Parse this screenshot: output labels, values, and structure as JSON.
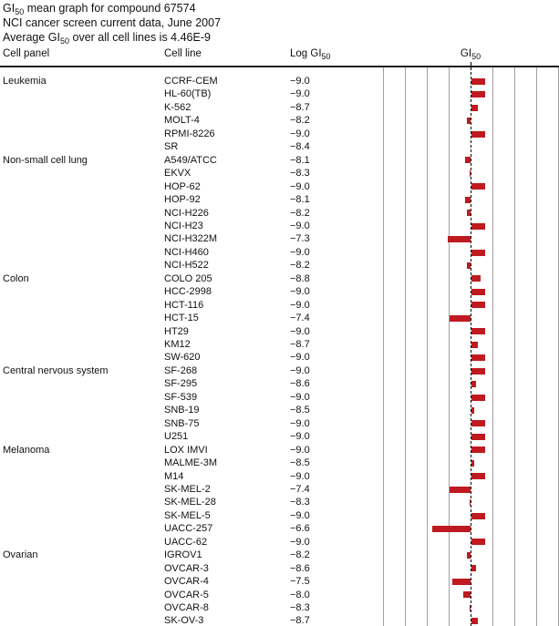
{
  "figure": {
    "title_line1": {
      "prefix": "GI",
      "sub": "50",
      "rest": " mean graph for compound 67574"
    },
    "title_line2": "NCI cancer screen current data, June 2007",
    "title_line3": {
      "prefix": "Average GI",
      "sub": "50",
      "rest": " over all cell lines is 4.46E-9"
    }
  },
  "columns": {
    "cell_panel": "Cell panel",
    "cell_line": "Cell line",
    "log_gi50": {
      "prefix": "Log GI",
      "sub": "50"
    },
    "gi50": {
      "prefix": "GI",
      "sub": "50"
    }
  },
  "chart_data": {
    "type": "bar",
    "orientation": "horizontal-deviation",
    "title": "GI50 mean graph for compound 67574",
    "subtitle": "NCI cancer screen current data, June 2007",
    "average_gi50": "4.46E-9",
    "mean_log_gi50": -8.35,
    "value_label": "Log GI50",
    "bars_extend_right_when": "log GI50 below mean (more sensitive)",
    "axis": {
      "min_deviation": -4,
      "max_deviation": 4,
      "tick_step": 1,
      "gridlines": true,
      "mean_line_style": "dashed"
    },
    "bar_color": "#bf1a20",
    "panels": [
      {
        "name": "Leukemia",
        "lines": [
          {
            "cell_line": "CCRF-CEM",
            "log_gi50": -9.0
          },
          {
            "cell_line": "HL-60(TB)",
            "log_gi50": -9.0
          },
          {
            "cell_line": "K-562",
            "log_gi50": -8.7
          },
          {
            "cell_line": "MOLT-4",
            "log_gi50": -8.2
          },
          {
            "cell_line": "RPMI-8226",
            "log_gi50": -9.0
          },
          {
            "cell_line": "SR",
            "log_gi50": -8.4
          }
        ]
      },
      {
        "name": "Non-small cell lung",
        "lines": [
          {
            "cell_line": "A549/ATCC",
            "log_gi50": -8.1
          },
          {
            "cell_line": "EKVX",
            "log_gi50": -8.3
          },
          {
            "cell_line": "HOP-62",
            "log_gi50": -9.0
          },
          {
            "cell_line": "HOP-92",
            "log_gi50": -8.1
          },
          {
            "cell_line": "NCI-H226",
            "log_gi50": -8.2
          },
          {
            "cell_line": "NCI-H23",
            "log_gi50": -9.0
          },
          {
            "cell_line": "NCI-H322M",
            "log_gi50": -7.3
          },
          {
            "cell_line": "NCI-H460",
            "log_gi50": -9.0
          },
          {
            "cell_line": "NCI-H522",
            "log_gi50": -8.2
          }
        ]
      },
      {
        "name": "Colon",
        "lines": [
          {
            "cell_line": "COLO 205",
            "log_gi50": -8.8
          },
          {
            "cell_line": "HCC-2998",
            "log_gi50": -9.0
          },
          {
            "cell_line": "HCT-116",
            "log_gi50": -9.0
          },
          {
            "cell_line": "HCT-15",
            "log_gi50": -7.4
          },
          {
            "cell_line": "HT29",
            "log_gi50": -9.0
          },
          {
            "cell_line": "KM12",
            "log_gi50": -8.7
          },
          {
            "cell_line": "SW-620",
            "log_gi50": -9.0
          }
        ]
      },
      {
        "name": "Central nervous system",
        "lines": [
          {
            "cell_line": "SF-268",
            "log_gi50": -9.0
          },
          {
            "cell_line": "SF-295",
            "log_gi50": -8.6
          },
          {
            "cell_line": "SF-539",
            "log_gi50": -9.0
          },
          {
            "cell_line": "SNB-19",
            "log_gi50": -8.5
          },
          {
            "cell_line": "SNB-75",
            "log_gi50": -9.0
          },
          {
            "cell_line": "U251",
            "log_gi50": -9.0
          }
        ]
      },
      {
        "name": "Melanoma",
        "lines": [
          {
            "cell_line": "LOX IMVI",
            "log_gi50": -9.0
          },
          {
            "cell_line": "MALME-3M",
            "log_gi50": -8.5
          },
          {
            "cell_line": "M14",
            "log_gi50": -9.0
          },
          {
            "cell_line": "SK-MEL-2",
            "log_gi50": -7.4
          },
          {
            "cell_line": "SK-MEL-28",
            "log_gi50": -8.3
          },
          {
            "cell_line": "SK-MEL-5",
            "log_gi50": -9.0
          },
          {
            "cell_line": "UACC-257",
            "log_gi50": -6.6
          },
          {
            "cell_line": "UACC-62",
            "log_gi50": -9.0
          }
        ]
      },
      {
        "name": "Ovarian",
        "lines": [
          {
            "cell_line": "IGROV1",
            "log_gi50": -8.2
          },
          {
            "cell_line": "OVCAR-3",
            "log_gi50": -8.6
          },
          {
            "cell_line": "OVCAR-4",
            "log_gi50": -7.5
          },
          {
            "cell_line": "OVCAR-5",
            "log_gi50": -8.0
          },
          {
            "cell_line": "OVCAR-8",
            "log_gi50": -8.3
          },
          {
            "cell_line": "SK-OV-3",
            "log_gi50": -8.7
          }
        ]
      }
    ]
  }
}
